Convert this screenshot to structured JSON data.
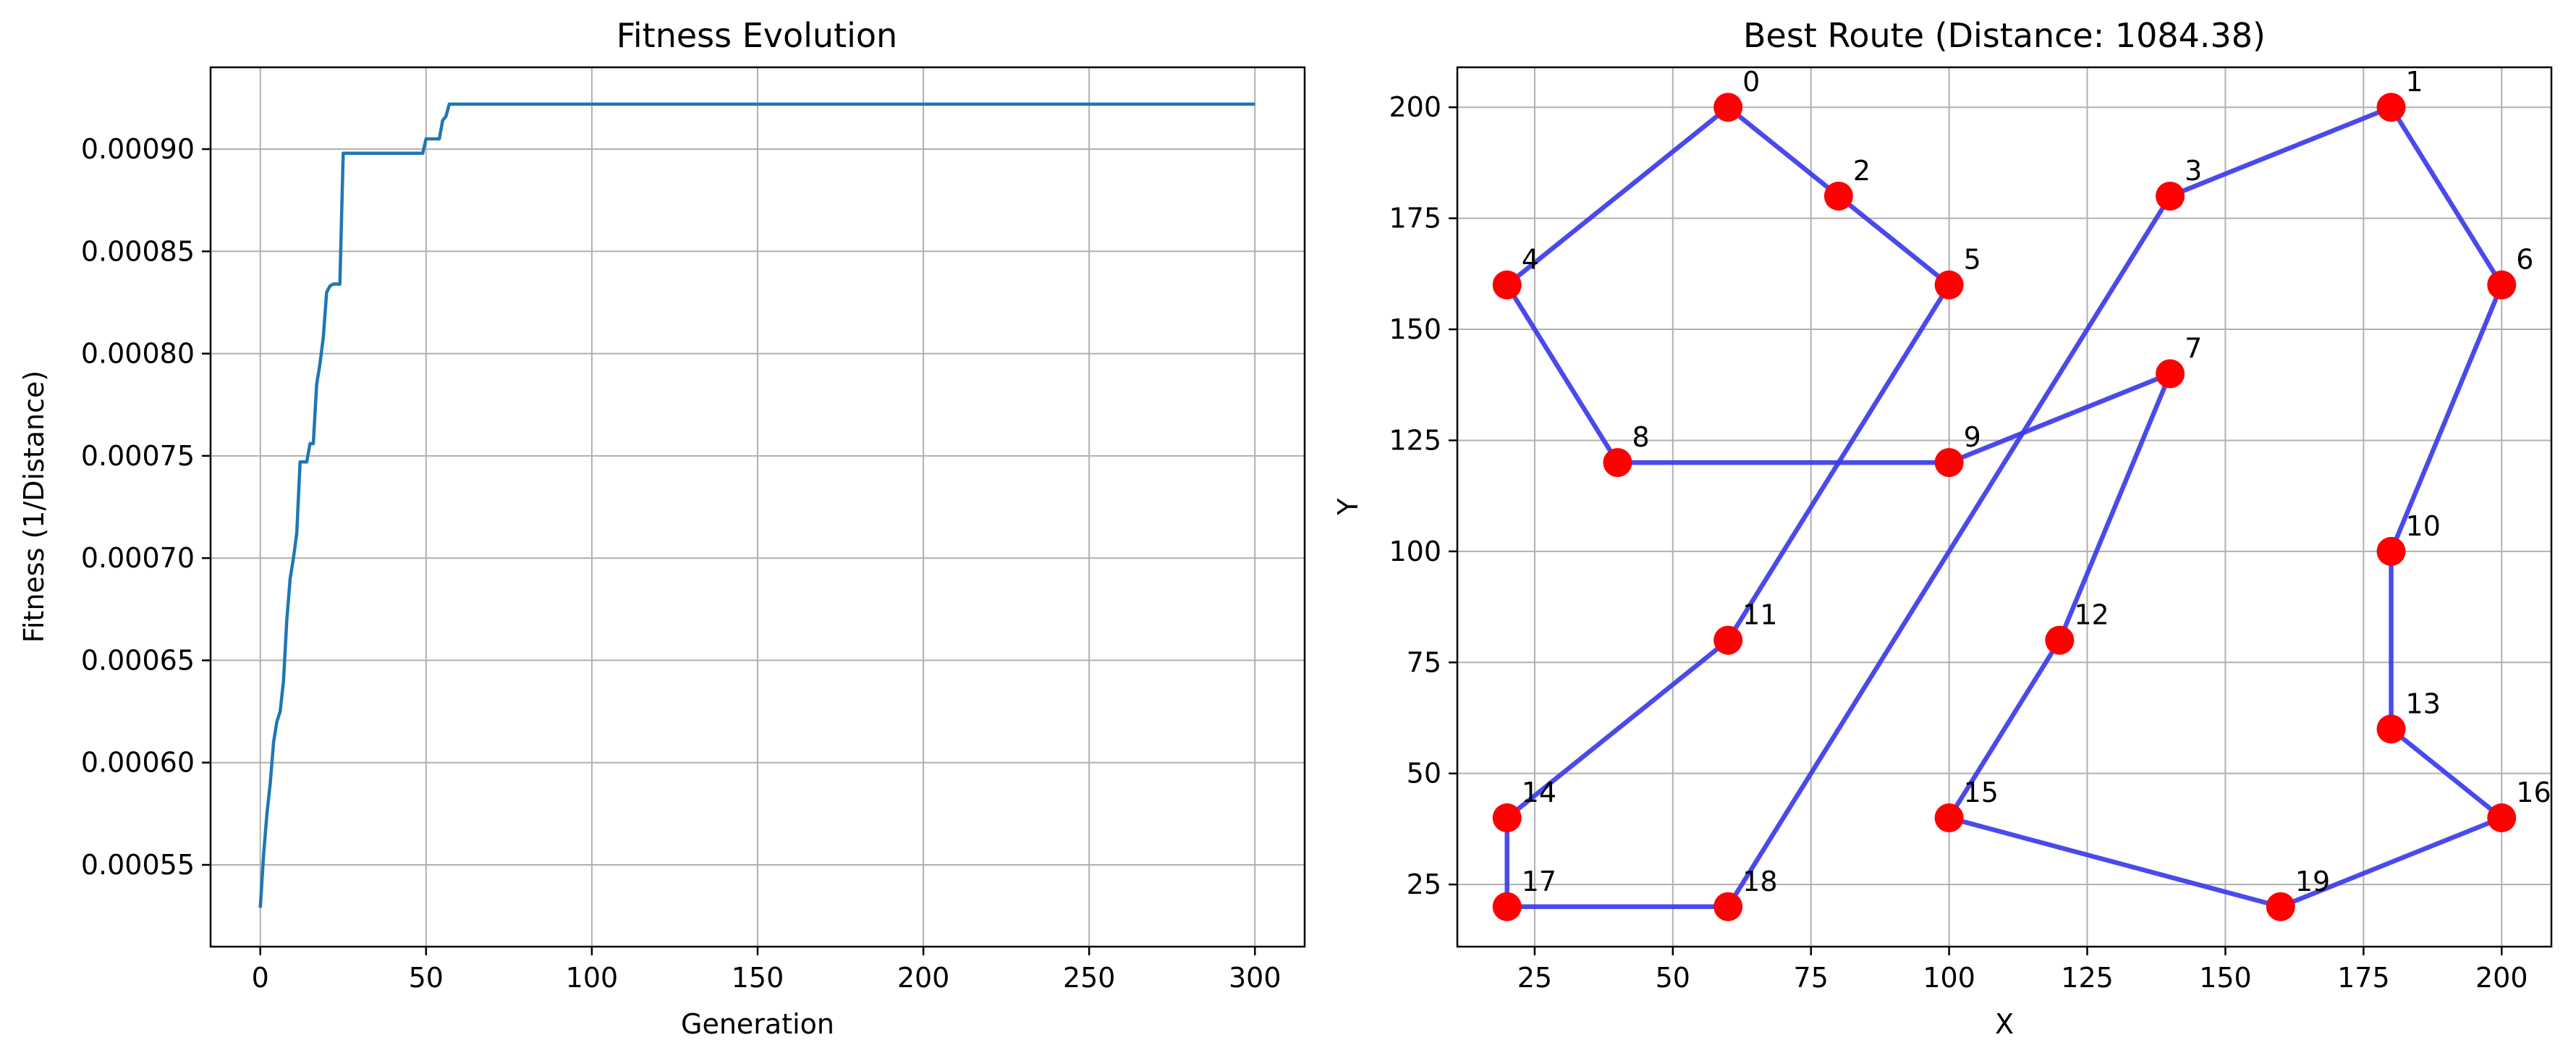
{
  "chart_data": [
    {
      "type": "line",
      "title": "Fitness Evolution",
      "xlabel": "Generation",
      "ylabel": "Fitness (1/Distance)",
      "xlim": [
        -15,
        315
      ],
      "ylim": [
        0.00051,
        0.00094
      ],
      "xticks": [
        0,
        50,
        100,
        150,
        200,
        250,
        300
      ],
      "yticks": [
        0.00055,
        0.0006,
        0.00065,
        0.0007,
        0.00075,
        0.0008,
        0.00085,
        0.0009
      ],
      "ytick_labels": [
        "0.00055",
        "0.00060",
        "0.00065",
        "0.00070",
        "0.00075",
        "0.00080",
        "0.00085",
        "0.00090"
      ],
      "grid": true,
      "color": "#1f77b4",
      "series": [
        {
          "x": [
            0,
            1,
            2,
            3,
            4,
            5,
            6,
            7,
            8,
            9,
            10,
            11,
            12,
            13,
            14,
            15,
            16,
            17,
            18,
            19,
            20,
            21,
            22,
            24,
            25,
            30,
            40,
            49,
            50,
            54,
            55,
            56,
            57,
            300
          ],
          "y": [
            0.000529,
            0.000555,
            0.000575,
            0.00059,
            0.00061,
            0.00062,
            0.000625,
            0.00064,
            0.00067,
            0.00069,
            0.0007,
            0.000712,
            0.000747,
            0.000747,
            0.000747,
            0.000756,
            0.000756,
            0.000785,
            0.000795,
            0.000808,
            0.00083,
            0.000833,
            0.000834,
            0.000834,
            0.000898,
            0.000898,
            0.000898,
            0.000898,
            0.000905,
            0.000905,
            0.000914,
            0.000916,
            0.000922,
            0.000922
          ]
        }
      ]
    },
    {
      "type": "scatter",
      "title": "Best Route (Distance: 1084.38)",
      "xlabel": "X",
      "ylabel": "Y",
      "xlim": [
        11,
        209
      ],
      "ylim": [
        11,
        209
      ],
      "xticks": [
        25,
        50,
        75,
        100,
        125,
        150,
        175,
        200
      ],
      "yticks": [
        25,
        50,
        75,
        100,
        125,
        150,
        175,
        200
      ],
      "grid": true,
      "point_color": "#ff0000",
      "route_color": "#3b3bea",
      "points": [
        {
          "label": "0",
          "x": 60,
          "y": 200
        },
        {
          "label": "1",
          "x": 180,
          "y": 200
        },
        {
          "label": "2",
          "x": 80,
          "y": 180
        },
        {
          "label": "3",
          "x": 140,
          "y": 180
        },
        {
          "label": "4",
          "x": 20,
          "y": 160
        },
        {
          "label": "5",
          "x": 100,
          "y": 160
        },
        {
          "label": "6",
          "x": 200,
          "y": 160
        },
        {
          "label": "7",
          "x": 140,
          "y": 140
        },
        {
          "label": "8",
          "x": 40,
          "y": 120
        },
        {
          "label": "9",
          "x": 100,
          "y": 120
        },
        {
          "label": "10",
          "x": 180,
          "y": 100
        },
        {
          "label": "11",
          "x": 60,
          "y": 80
        },
        {
          "label": "12",
          "x": 120,
          "y": 80
        },
        {
          "label": "13",
          "x": 180,
          "y": 60
        },
        {
          "label": "14",
          "x": 20,
          "y": 40
        },
        {
          "label": "15",
          "x": 100,
          "y": 40
        },
        {
          "label": "16",
          "x": 200,
          "y": 40
        },
        {
          "label": "17",
          "x": 20,
          "y": 20
        },
        {
          "label": "18",
          "x": 60,
          "y": 20
        },
        {
          "label": "19",
          "x": 160,
          "y": 20
        }
      ],
      "route": [
        0,
        2,
        5,
        11,
        14,
        17,
        18,
        3,
        1,
        6,
        10,
        13,
        16,
        19,
        15,
        12,
        7,
        9,
        8,
        4,
        0
      ]
    }
  ]
}
